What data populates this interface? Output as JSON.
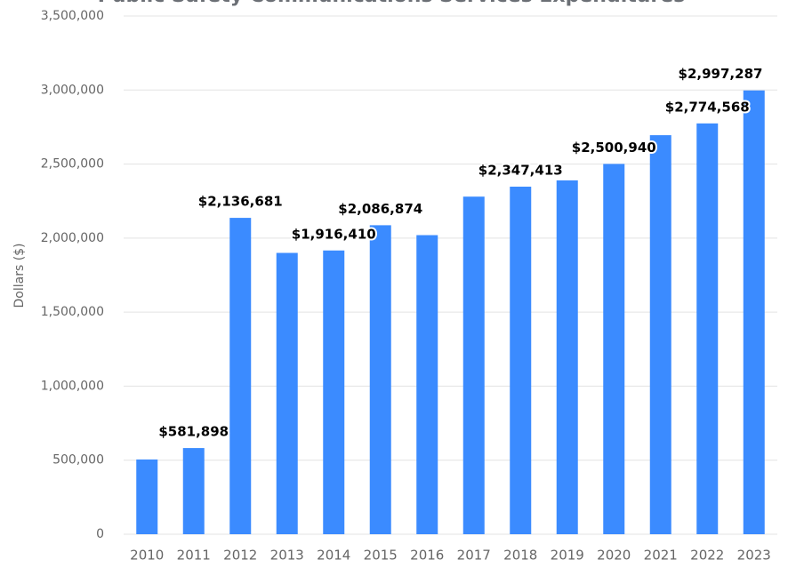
{
  "chart_data": {
    "type": "bar",
    "title": "Public Safety Communications Services Expenditures",
    "y_label": "Dollars ($)",
    "categories": [
      "2010",
      "2011",
      "2012",
      "2013",
      "2014",
      "2015",
      "2016",
      "2017",
      "2018",
      "2019",
      "2020",
      "2021",
      "2022",
      "2023"
    ],
    "values": [
      505000,
      581898,
      2136681,
      1900000,
      1916410,
      2086874,
      2020000,
      2280000,
      2347413,
      2390000,
      2500940,
      2695000,
      2774568,
      2997287
    ],
    "value_labels": [
      null,
      "$581,898",
      "$2,136,681",
      null,
      "$1,916,410",
      "$2,086,874",
      null,
      null,
      "$2,347,413",
      null,
      "$2,500,940",
      null,
      "$2,774,568",
      "$2,997,287"
    ],
    "color": "#3b8bff",
    "ylim": [
      0,
      3500000
    ],
    "yticks": [
      0,
      {
        "value": 500000,
        "label": "500,000"
      },
      {
        "value": 1000000,
        "label": "1,000,000"
      },
      {
        "value": 1500000,
        "label": "1,500,000"
      },
      {
        "value": 2000000,
        "label": "2,000,000"
      },
      {
        "value": 2500000,
        "label": "2,500,000"
      },
      {
        "value": 3000000,
        "label": "3,000,000"
      },
      {
        "value": 3500000,
        "label": "3,500,000"
      }
    ],
    "grid": true
  }
}
